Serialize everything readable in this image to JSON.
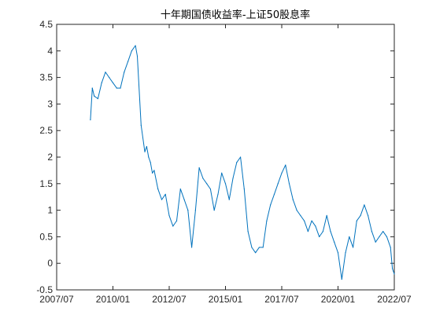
{
  "chart_data": {
    "type": "line",
    "title": "十年期国债收益率-上证50股息率",
    "xlabel": "",
    "ylabel": "",
    "x_ticks": [
      "2007/07",
      "2010/01",
      "2012/07",
      "2015/01",
      "2017/07",
      "2020/01",
      "2022/07"
    ],
    "x_range": [
      "2007/07",
      "2022/07"
    ],
    "y_ticks": [
      -0.5,
      0,
      0.5,
      1,
      1.5,
      2,
      2.5,
      3,
      3.5,
      4,
      4.5
    ],
    "ylim": [
      -0.5,
      4.5
    ],
    "grid": false,
    "legend": "none",
    "line_color": "#0072BD",
    "series": [
      {
        "x": [
          "2009/01",
          "2009/02",
          "2009/03",
          "2009/05",
          "2009/07",
          "2009/09",
          "2009/11",
          "2010/01",
          "2010/03",
          "2010/05",
          "2010/07",
          "2010/09",
          "2010/11",
          "2011/01",
          "2011/02",
          "2011/04",
          "2011/06",
          "2011/07",
          "2011/08",
          "2011/09",
          "2011/10",
          "2011/11",
          "2012/01",
          "2012/03",
          "2012/05",
          "2012/07",
          "2012/09",
          "2012/11",
          "2013/01",
          "2013/03",
          "2013/05",
          "2013/07",
          "2013/09",
          "2013/11",
          "2014/01",
          "2014/03",
          "2014/05",
          "2014/07",
          "2014/09",
          "2014/11",
          "2015/01",
          "2015/03",
          "2015/05",
          "2015/07",
          "2015/09",
          "2015/11",
          "2016/01",
          "2016/03",
          "2016/05",
          "2016/07",
          "2016/09",
          "2016/11",
          "2017/01",
          "2017/03",
          "2017/05",
          "2017/07",
          "2017/09",
          "2017/11",
          "2018/01",
          "2018/03",
          "2018/05",
          "2018/07",
          "2018/09",
          "2018/11",
          "2019/01",
          "2019/03",
          "2019/05",
          "2019/07",
          "2019/09",
          "2019/11",
          "2020/01",
          "2020/03",
          "2020/05",
          "2020/07",
          "2020/09",
          "2020/11",
          "2021/01",
          "2021/03",
          "2021/05",
          "2021/07",
          "2021/09",
          "2021/11",
          "2022/01",
          "2022/03",
          "2022/05",
          "2022/06",
          "2022/07"
        ],
        "values": [
          2.7,
          3.3,
          3.15,
          3.1,
          3.4,
          3.6,
          3.5,
          3.4,
          3.3,
          3.3,
          3.6,
          3.8,
          4.0,
          4.1,
          3.9,
          2.6,
          2.1,
          2.2,
          2.0,
          1.9,
          1.7,
          1.75,
          1.4,
          1.2,
          1.3,
          0.9,
          0.7,
          0.8,
          1.4,
          1.2,
          1.0,
          0.3,
          1.0,
          1.8,
          1.6,
          1.5,
          1.4,
          1.0,
          1.3,
          1.7,
          1.5,
          1.2,
          1.6,
          1.9,
          2.0,
          1.4,
          0.6,
          0.3,
          0.2,
          0.3,
          0.3,
          0.8,
          1.1,
          1.3,
          1.5,
          1.7,
          1.85,
          1.5,
          1.2,
          1.0,
          0.9,
          0.8,
          0.6,
          0.8,
          0.7,
          0.5,
          0.6,
          0.9,
          0.6,
          0.4,
          0.2,
          -0.3,
          0.2,
          0.5,
          0.3,
          0.8,
          0.9,
          1.1,
          0.9,
          0.6,
          0.4,
          0.5,
          0.6,
          0.5,
          0.3,
          -0.1,
          -0.2
        ]
      }
    ]
  }
}
